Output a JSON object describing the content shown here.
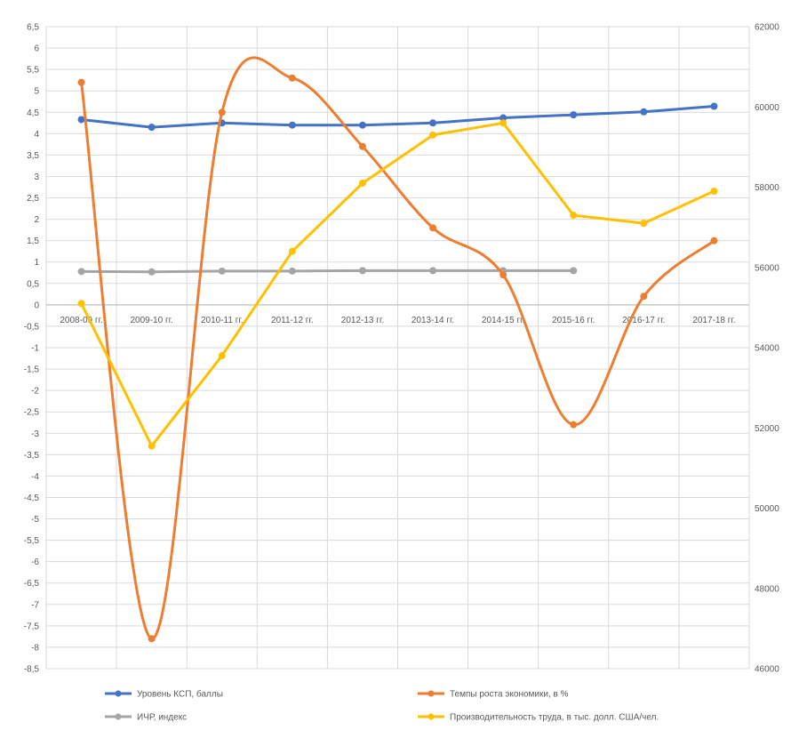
{
  "chart_data": {
    "type": "line",
    "categories": [
      "2008-09 гг.",
      "2009-10 гг.",
      "2010-11 гг.",
      "2011-12 гг.",
      "2012-13 гг.",
      "2013-14 гг.",
      "2014-15 гг.",
      "2015-16 гг.",
      "2016-17 гг.",
      "2017-18 гг."
    ],
    "series": [
      {
        "name": "Уровень КСП, баллы",
        "axis": "left",
        "color": "#4472c4",
        "smooth": false,
        "values": [
          4.33,
          4.15,
          4.25,
          4.2,
          4.2,
          4.25,
          4.37,
          4.44,
          4.51,
          4.64
        ]
      },
      {
        "name": "Темпы роста экономики, в %",
        "axis": "left",
        "color": "#ed7d31",
        "smooth": true,
        "values": [
          5.2,
          -7.8,
          4.5,
          5.3,
          3.7,
          1.8,
          0.7,
          -2.8,
          0.2,
          1.5
        ]
      },
      {
        "name": "ИЧР, индекс",
        "axis": "left",
        "color": "#a5a5a5",
        "smooth": false,
        "values": [
          0.78,
          0.77,
          0.79,
          0.79,
          0.8,
          0.8,
          0.8,
          0.8,
          null,
          null
        ]
      },
      {
        "name": "Производительность труда, в тыс. долл. США/чел.",
        "axis": "right",
        "color": "#ffc000",
        "smooth": false,
        "values": [
          55100,
          51550,
          53800,
          56400,
          58100,
          59300,
          59600,
          57300,
          57100,
          57900
        ]
      }
    ],
    "y_left": {
      "min": -8.5,
      "max": 6.5,
      "step": 0.5,
      "tick_labels": [
        "6,5",
        "6",
        "5,5",
        "5",
        "4,5",
        "4",
        "3,5",
        "3",
        "2,5",
        "2",
        "1,5",
        "1",
        "0,5",
        "0",
        "-0,5",
        "-1",
        "-1,5",
        "-2",
        "-2,5",
        "-3",
        "-3,5",
        "-4",
        "-4,5",
        "-5",
        "-5,5",
        "-6",
        "-6,5",
        "-7",
        "-7,5",
        "-8",
        "-8,5"
      ]
    },
    "y_right": {
      "min": 46000,
      "max": 62000,
      "step": 2000,
      "tick_labels": [
        "62000",
        "60000",
        "58000",
        "56000",
        "54000",
        "52000",
        "50000",
        "48000",
        "46000"
      ]
    },
    "grid": true,
    "legend": "bottom"
  }
}
